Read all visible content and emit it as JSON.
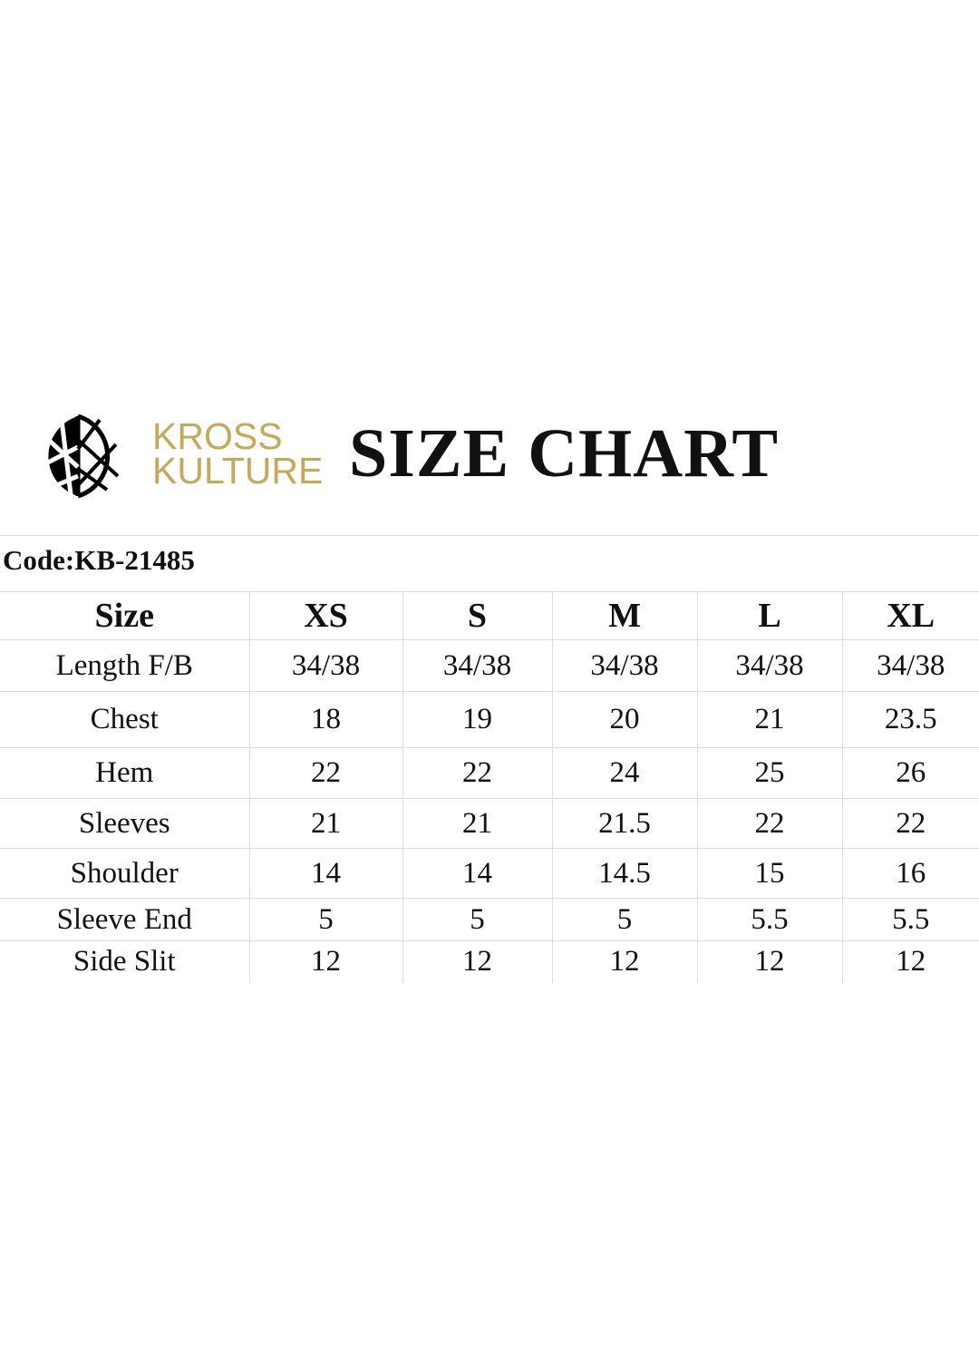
{
  "brand": {
    "line1": "KROSS",
    "line2": "KULTURE",
    "color": "#c4a95c",
    "logo_icon": "kross-kulture-circle-logo"
  },
  "title": "SIZE CHART",
  "code": "Code:KB-21485",
  "table": {
    "headers": [
      "Size",
      "XS",
      "S",
      "M",
      "L",
      "XL"
    ],
    "rows": [
      [
        "Length F/B",
        "34/38",
        "34/38",
        "34/38",
        "34/38",
        "34/38"
      ],
      [
        "Chest",
        "18",
        "19",
        "20",
        "21",
        "23.5"
      ],
      [
        "Hem",
        "22",
        "22",
        "24",
        "25",
        "26"
      ],
      [
        "Sleeves",
        "21",
        "21",
        "21.5",
        "22",
        "22"
      ],
      [
        "Shoulder",
        "14",
        "14",
        "14.5",
        "15",
        "16"
      ],
      [
        "Sleeve End",
        "5",
        "5",
        "5",
        "5.5",
        "5.5"
      ],
      [
        "Side Slit",
        "12",
        "12",
        "12",
        "12",
        "12"
      ]
    ]
  }
}
